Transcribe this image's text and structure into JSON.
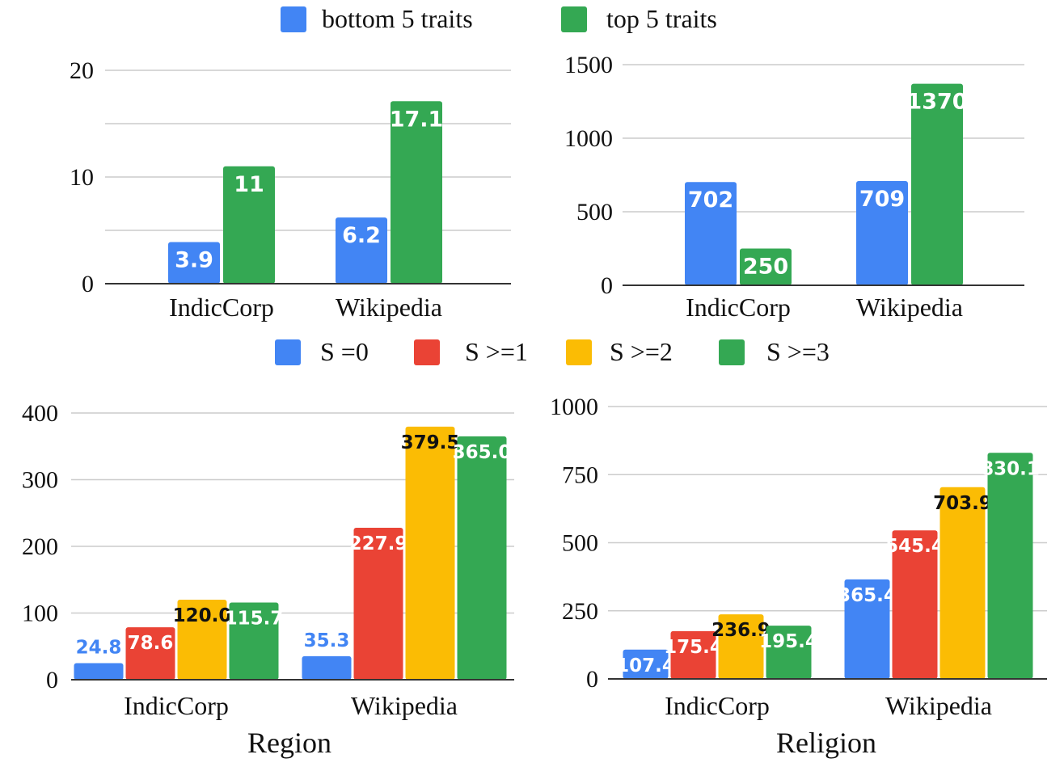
{
  "legends": {
    "top": [
      {
        "label": "bottom 5 traits",
        "color": "#4285F4"
      },
      {
        "label": "top 5 traits",
        "color": "#34A853"
      }
    ],
    "bottom": [
      {
        "label": "S =0",
        "color": "#4285F4"
      },
      {
        "label": "S >=1",
        "color": "#EA4335"
      },
      {
        "label": "S >=2",
        "color": "#FBBC04"
      },
      {
        "label": "S >=3",
        "color": "#34A853"
      }
    ]
  },
  "chart_data": [
    {
      "type": "bar",
      "title": "",
      "categories": [
        "IndicCorp",
        "Wikipedia"
      ],
      "series": [
        {
          "name": "bottom 5 traits",
          "values": [
            3.9,
            6.2
          ],
          "labels": [
            "3.9",
            "6.2"
          ]
        },
        {
          "name": "top 5 traits",
          "values": [
            11,
            17.1
          ],
          "labels": [
            "11",
            "17.1"
          ]
        }
      ],
      "ylim": [
        0,
        20
      ],
      "yticks": [
        "0",
        "10",
        "20"
      ],
      "grid": true
    },
    {
      "type": "bar",
      "title": "",
      "categories": [
        "IndicCorp",
        "Wikipedia"
      ],
      "series": [
        {
          "name": "bottom 5 traits",
          "values": [
            702,
            709
          ],
          "labels": [
            "702",
            "709"
          ]
        },
        {
          "name": "top 5 traits",
          "values": [
            250,
            1370
          ],
          "labels": [
            "250",
            "1370"
          ]
        }
      ],
      "ylim": [
        0,
        1500
      ],
      "yticks": [
        "0",
        "500",
        "1000",
        "1500"
      ],
      "grid": true
    },
    {
      "type": "bar",
      "title": "Region",
      "categories": [
        "IndicCorp",
        "Wikipedia"
      ],
      "series": [
        {
          "name": "S =0",
          "values": [
            24.8,
            35.3
          ],
          "labels": [
            "24.8",
            "35.3"
          ]
        },
        {
          "name": "S >=1",
          "values": [
            78.6,
            227.9
          ],
          "labels": [
            "78.6",
            "227.9"
          ]
        },
        {
          "name": "S >=2",
          "values": [
            120.0,
            379.5
          ],
          "labels": [
            "120.0",
            "379.5"
          ]
        },
        {
          "name": "S >=3",
          "values": [
            115.7,
            365.0
          ],
          "labels": [
            "115.7",
            "365.0"
          ]
        }
      ],
      "ylim": [
        0,
        400
      ],
      "yticks": [
        "0",
        "100",
        "200",
        "300",
        "400"
      ],
      "grid": true
    },
    {
      "type": "bar",
      "title": "Religion",
      "categories": [
        "IndicCorp",
        "Wikipedia"
      ],
      "series": [
        {
          "name": "S =0",
          "values": [
            107.4,
            365.4
          ],
          "labels": [
            "107.4",
            "365.4"
          ]
        },
        {
          "name": "S >=1",
          "values": [
            175.4,
            545.4
          ],
          "labels": [
            "175.4",
            "545.4"
          ]
        },
        {
          "name": "S >=2",
          "values": [
            236.9,
            703.9
          ],
          "labels": [
            "236.9",
            "703.9"
          ]
        },
        {
          "name": "S >=3",
          "values": [
            195.4,
            830.1
          ],
          "labels": [
            "195.4",
            "830.1"
          ]
        }
      ],
      "ylim": [
        0,
        1000
      ],
      "yticks": [
        "0",
        "250",
        "500",
        "750",
        "1000"
      ],
      "grid": true
    }
  ]
}
